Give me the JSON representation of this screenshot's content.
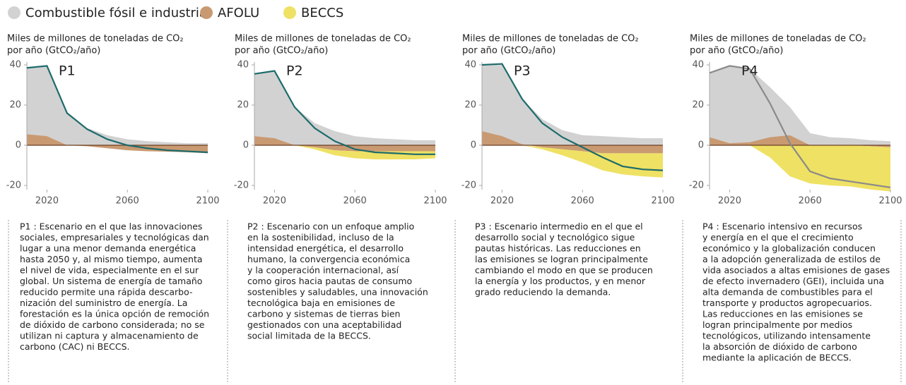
{
  "chart_data": [
    {
      "type": "area",
      "label": "P1",
      "ylabel": [
        "Miles de millones de toneladas de CO₂",
        "por año (GtCO₂/año)"
      ],
      "x": [
        2010,
        2020,
        2030,
        2040,
        2050,
        2060,
        2070,
        2080,
        2090,
        2100
      ],
      "xlim": [
        2010,
        2100
      ],
      "xticks": [
        2020,
        2060,
        2100
      ],
      "ylim": [
        -20,
        40
      ],
      "yticks": [
        40,
        20,
        0,
        -20
      ],
      "series": [
        {
          "name": "Combustible fósil e industria",
          "color": "#d2d2d2",
          "values": [
            38.5,
            39.5,
            16,
            8.5,
            5,
            3,
            2,
            1.5,
            1,
            1
          ]
        },
        {
          "name": "AFOLU",
          "color": "#c99a72",
          "values": [
            5.5,
            4.5,
            0,
            -0.5,
            -1.5,
            -2.5,
            -3,
            -3.2,
            -3.5,
            -4
          ]
        },
        {
          "name": "BECCS",
          "color": "#efe163",
          "values": [
            0,
            0,
            0,
            0,
            0,
            0,
            0,
            0,
            0,
            0
          ]
        },
        {
          "color": "#1e6b6b",
          "values": [
            38.5,
            39.5,
            16,
            8,
            3,
            0,
            -1.5,
            -2.5,
            -3,
            -3.5
          ]
        }
      ],
      "description": [
        "P1 : Escenario en el que las innovaciones",
        "sociales, empresariales y tecnológicas dan",
        "lugar a una menor demanda energética",
        "hasta 2050 y, al mismo tiempo, aumenta",
        "el nivel de vida, especialmente en el sur",
        "global. Un sistema de energía de tamaño",
        "reducido permite una rápida descarbo-",
        "nización del suministro de energía. La",
        "forestación es la única opción de remoción",
        "de dióxido de carbono considerada; no se",
        "utilizan ni captura y almacenamiento de",
        "carbono (CAC) ni BECCS."
      ]
    },
    {
      "type": "area",
      "label": "P2",
      "ylabel": [
        "Miles de millones de toneladas de CO₂",
        "por año (GtCO₂/año)"
      ],
      "x": [
        2010,
        2020,
        2030,
        2040,
        2050,
        2060,
        2070,
        2080,
        2090,
        2100
      ],
      "xlim": [
        2010,
        2100
      ],
      "xticks": [
        2020,
        2060,
        2100
      ],
      "ylim": [
        -20,
        40
      ],
      "yticks": [
        40,
        20,
        0,
        -20
      ],
      "series": [
        {
          "color": "#d2d2d2",
          "values": [
            35.5,
            37,
            19,
            11,
            7,
            4.5,
            3.5,
            3,
            2.5,
            2.5
          ]
        },
        {
          "color": "#c99a72",
          "values": [
            4.5,
            3.5,
            0,
            -1,
            -2.5,
            -3,
            -3,
            -3,
            -3,
            -3
          ]
        },
        {
          "color": "#efe163",
          "values": [
            0,
            0,
            0,
            -1,
            -2.5,
            -3.5,
            -4,
            -4,
            -4,
            -3.5
          ]
        },
        {
          "color": "#1e6b6b",
          "values": [
            35.5,
            37,
            19,
            8.5,
            2,
            -2,
            -3.5,
            -4,
            -4.5,
            -4.5
          ]
        }
      ],
      "description": [
        "P2 : Escenario con un enfoque amplio",
        "en la sostenibilidad, incluso de la",
        "intensidad energética, el desarrollo",
        "humano, la convergencia económica",
        "y la cooperación internacional, así",
        "como giros hacia pautas de consumo",
        "sostenibles y saludables, una innovación",
        "tecnológica baja en emisiones de",
        "carbono y sistemas de tierras bien",
        "gestionados con una aceptabilidad",
        "social limitada de la BECCS."
      ]
    },
    {
      "type": "area",
      "label": "P3",
      "ylabel": [
        "Miles de millones de toneladas de CO₂",
        "por año (GtCO₂/año)"
      ],
      "x": [
        2010,
        2020,
        2030,
        2040,
        2050,
        2060,
        2070,
        2080,
        2090,
        2100
      ],
      "xlim": [
        2010,
        2100
      ],
      "xticks": [
        2020,
        2060,
        2100
      ],
      "ylim": [
        -20,
        40
      ],
      "yticks": [
        40,
        20,
        0,
        -20
      ],
      "series": [
        {
          "color": "#d2d2d2",
          "values": [
            40,
            40.5,
            23,
            13,
            7.5,
            5,
            4.5,
            4,
            3.5,
            3.5
          ]
        },
        {
          "color": "#c99a72",
          "values": [
            7,
            4.5,
            0.5,
            -1,
            -2,
            -3,
            -4,
            -4,
            -4,
            -4
          ]
        },
        {
          "color": "#efe163",
          "values": [
            0,
            0,
            0,
            -1,
            -3,
            -5.5,
            -8.5,
            -10.5,
            -11.5,
            -12
          ]
        },
        {
          "color": "#1e6b6b",
          "values": [
            40,
            40.5,
            23,
            11,
            4,
            -1,
            -6,
            -10.5,
            -12,
            -12.5
          ]
        }
      ],
      "description": [
        "P3 : Escenario intermedio en el que el",
        "desarrollo social y tecnológico sigue",
        "pautas históricas. Las reducciones en",
        "las emisiones se logran principalmente",
        "cambiando el modo en que se producen",
        "la energía y los productos, y en menor",
        "grado reduciendo la demanda."
      ]
    },
    {
      "type": "area",
      "label": "P4",
      "ylabel": [
        "Miles de millones de toneladas de CO₂",
        "por año (GtCO₂/año)"
      ],
      "x": [
        2010,
        2020,
        2030,
        2040,
        2050,
        2060,
        2070,
        2080,
        2090,
        2100
      ],
      "xlim": [
        2010,
        2100
      ],
      "xticks": [
        2020,
        2060,
        2100
      ],
      "ylim": [
        -20,
        40
      ],
      "yticks": [
        40,
        20,
        0,
        -20
      ],
      "series": [
        {
          "color": "#d2d2d2",
          "values": [
            36,
            39.5,
            38,
            29,
            19,
            6,
            4,
            3.5,
            2.5,
            2
          ]
        },
        {
          "color": "#c99a72",
          "values": [
            4,
            1,
            1.5,
            4,
            5,
            0,
            0,
            0,
            -0.5,
            -1
          ]
        },
        {
          "color": "#efe163",
          "values": [
            0,
            0,
            0,
            -6,
            -15.5,
            -19,
            -20,
            -20.5,
            -21.5,
            -22
          ]
        },
        {
          "color": "#8a8a8a",
          "values": [
            36,
            39.5,
            38,
            21,
            1,
            -13,
            -16.5,
            -18,
            -19.5,
            -21
          ]
        }
      ],
      "description": [
        "P4 : Escenario intensivo en recursos",
        "y energía en el que el crecimiento",
        "económico y la globalización conducen",
        "a la adopción generalizada de estilos de",
        "vida asociados a altas emisiones de gases",
        "de efecto invernadero (GEI), incluida una",
        "alta demanda de combustibles para el",
        "transporte y productos agropecuarios.",
        "Las reducciones en las emisiones se",
        "logran principalmente por medios",
        "tecnológicos, utilizando intensamente",
        "la absorción de dióxido de carbono",
        "mediante la aplicación de BECCS."
      ]
    }
  ]
}
